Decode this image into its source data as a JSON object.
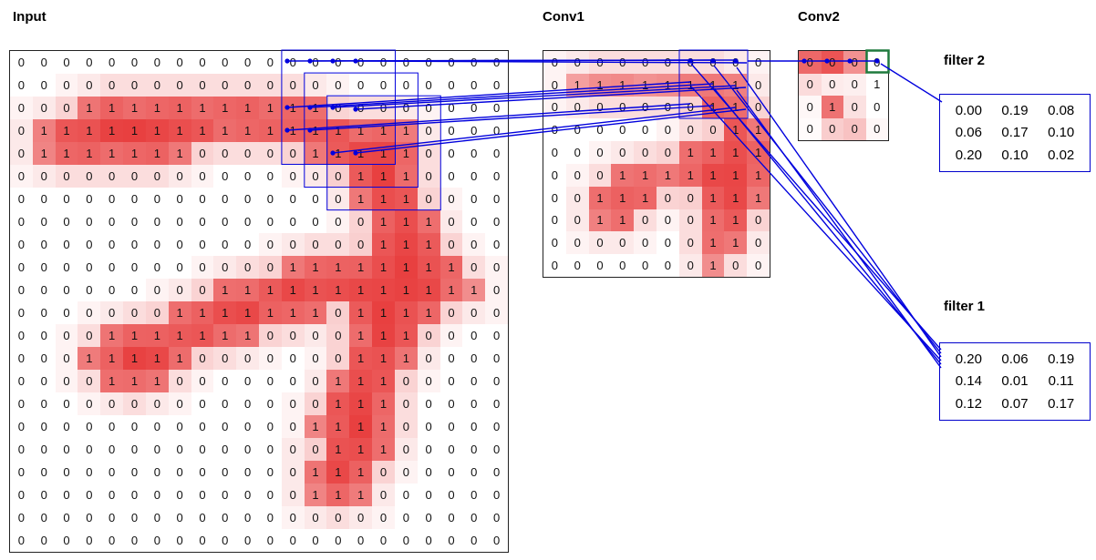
{
  "labels": {
    "input": "Input",
    "conv1": "Conv1",
    "conv2": "Conv2"
  },
  "input_grid": {
    "rows": 22,
    "cols": 22,
    "values": [
      [
        0,
        0,
        0,
        0,
        0,
        0,
        0,
        0,
        0,
        0,
        0,
        0,
        0,
        0,
        0,
        0,
        0,
        0,
        0,
        0,
        0,
        0
      ],
      [
        0,
        0,
        0,
        0,
        0,
        0,
        0,
        0,
        0,
        0,
        0,
        0,
        0,
        0,
        0,
        0,
        0,
        0,
        0,
        0,
        0,
        0
      ],
      [
        0,
        0,
        0,
        1,
        1,
        1,
        1,
        1,
        1,
        1,
        1,
        1,
        1,
        1,
        0,
        0,
        0,
        0,
        0,
        0,
        0,
        0
      ],
      [
        0,
        1,
        1,
        1,
        1,
        1,
        1,
        1,
        1,
        1,
        1,
        1,
        1,
        1,
        1,
        1,
        1,
        1,
        0,
        0,
        0,
        0
      ],
      [
        0,
        1,
        1,
        1,
        1,
        1,
        1,
        1,
        0,
        0,
        0,
        0,
        0,
        1,
        1,
        1,
        1,
        1,
        0,
        0,
        0,
        0
      ],
      [
        0,
        0,
        0,
        0,
        0,
        0,
        0,
        0,
        0,
        0,
        0,
        0,
        0,
        0,
        0,
        1,
        1,
        1,
        0,
        0,
        0,
        0
      ],
      [
        0,
        0,
        0,
        0,
        0,
        0,
        0,
        0,
        0,
        0,
        0,
        0,
        0,
        0,
        0,
        1,
        1,
        1,
        0,
        0,
        0,
        0
      ],
      [
        0,
        0,
        0,
        0,
        0,
        0,
        0,
        0,
        0,
        0,
        0,
        0,
        0,
        0,
        0,
        0,
        1,
        1,
        1,
        0,
        0,
        0
      ],
      [
        0,
        0,
        0,
        0,
        0,
        0,
        0,
        0,
        0,
        0,
        0,
        0,
        0,
        0,
        0,
        0,
        1,
        1,
        1,
        0,
        0,
        0
      ],
      [
        0,
        0,
        0,
        0,
        0,
        0,
        0,
        0,
        0,
        0,
        0,
        0,
        1,
        1,
        1,
        1,
        1,
        1,
        1,
        1,
        0,
        0
      ],
      [
        0,
        0,
        0,
        0,
        0,
        0,
        0,
        0,
        0,
        1,
        1,
        1,
        1,
        1,
        1,
        1,
        1,
        1,
        1,
        1,
        1,
        0
      ],
      [
        0,
        0,
        0,
        0,
        0,
        0,
        0,
        1,
        1,
        1,
        1,
        1,
        1,
        1,
        0,
        1,
        1,
        1,
        1,
        0,
        0,
        0
      ],
      [
        0,
        0,
        0,
        0,
        1,
        1,
        1,
        1,
        1,
        1,
        1,
        0,
        0,
        0,
        0,
        1,
        1,
        1,
        0,
        0,
        0,
        0
      ],
      [
        0,
        0,
        0,
        1,
        1,
        1,
        1,
        1,
        0,
        0,
        0,
        0,
        0,
        0,
        0,
        1,
        1,
        1,
        0,
        0,
        0,
        0
      ],
      [
        0,
        0,
        0,
        0,
        1,
        1,
        1,
        0,
        0,
        0,
        0,
        0,
        0,
        0,
        1,
        1,
        1,
        0,
        0,
        0,
        0,
        0
      ],
      [
        0,
        0,
        0,
        0,
        0,
        0,
        0,
        0,
        0,
        0,
        0,
        0,
        0,
        0,
        1,
        1,
        1,
        0,
        0,
        0,
        0,
        0
      ],
      [
        0,
        0,
        0,
        0,
        0,
        0,
        0,
        0,
        0,
        0,
        0,
        0,
        0,
        1,
        1,
        1,
        1,
        0,
        0,
        0,
        0,
        0
      ],
      [
        0,
        0,
        0,
        0,
        0,
        0,
        0,
        0,
        0,
        0,
        0,
        0,
        0,
        0,
        1,
        1,
        1,
        0,
        0,
        0,
        0,
        0
      ],
      [
        0,
        0,
        0,
        0,
        0,
        0,
        0,
        0,
        0,
        0,
        0,
        0,
        0,
        1,
        1,
        1,
        0,
        0,
        0,
        0,
        0,
        0
      ],
      [
        0,
        0,
        0,
        0,
        0,
        0,
        0,
        0,
        0,
        0,
        0,
        0,
        0,
        1,
        1,
        1,
        0,
        0,
        0,
        0,
        0,
        0
      ],
      [
        0,
        0,
        0,
        0,
        0,
        0,
        0,
        0,
        0,
        0,
        0,
        0,
        0,
        0,
        0,
        0,
        0,
        0,
        0,
        0,
        0,
        0
      ],
      [
        0,
        0,
        0,
        0,
        0,
        0,
        0,
        0,
        0,
        0,
        0,
        0,
        0,
        0,
        0,
        0,
        0,
        0,
        0,
        0,
        0,
        0
      ]
    ]
  },
  "conv1_grid": {
    "rows": 10,
    "cols": 10,
    "values": [
      [
        0,
        0,
        0,
        0,
        0,
        0,
        0,
        0,
        0,
        0
      ],
      [
        0,
        1,
        1,
        1,
        1,
        1,
        1,
        1,
        1,
        0
      ],
      [
        0,
        0,
        0,
        0,
        0,
        0,
        0,
        1,
        1,
        0
      ],
      [
        0,
        0,
        0,
        0,
        0,
        0,
        0,
        0,
        1,
        1
      ],
      [
        0,
        0,
        0,
        0,
        0,
        0,
        1,
        1,
        1,
        1
      ],
      [
        0,
        0,
        0,
        1,
        1,
        1,
        1,
        1,
        1,
        1
      ],
      [
        0,
        0,
        1,
        1,
        1,
        0,
        0,
        1,
        1,
        1
      ],
      [
        0,
        0,
        1,
        1,
        0,
        0,
        0,
        1,
        1,
        0
      ],
      [
        0,
        0,
        0,
        0,
        0,
        0,
        0,
        1,
        1,
        0
      ],
      [
        0,
        0,
        0,
        0,
        0,
        0,
        0,
        1,
        0,
        0
      ]
    ]
  },
  "conv2_grid": {
    "rows": 4,
    "cols": 4,
    "values": [
      [
        0,
        0,
        0,
        0
      ],
      [
        0,
        0,
        0,
        1
      ],
      [
        0,
        1,
        0,
        0
      ],
      [
        0,
        0,
        0,
        0
      ]
    ],
    "heat": [
      [
        0.75,
        0.85,
        0.55,
        0.0
      ],
      [
        0.18,
        0.1,
        0.08,
        0.0
      ],
      [
        0.04,
        0.7,
        0.15,
        0.0
      ],
      [
        0.02,
        0.25,
        0.3,
        0.04
      ]
    ],
    "highlighted_cell": {
      "row": 0,
      "col": 3
    }
  },
  "filter2": {
    "label": "filter 2",
    "values": [
      [
        "0.00",
        "0.19",
        "0.08"
      ],
      [
        "0.06",
        "0.17",
        "0.10"
      ],
      [
        "0.20",
        "0.10",
        "0.02"
      ]
    ]
  },
  "filter1": {
    "label": "filter 1",
    "values": [
      [
        "0.20",
        "0.06",
        "0.19"
      ],
      [
        "0.14",
        "0.01",
        "0.11"
      ],
      [
        "0.12",
        "0.07",
        "0.17"
      ]
    ]
  },
  "colors": {
    "heat_red": "#e73636",
    "connector_blue": "#0000dd",
    "highlight_green": "#1f7a3d",
    "filter_border": "#0000cc"
  }
}
